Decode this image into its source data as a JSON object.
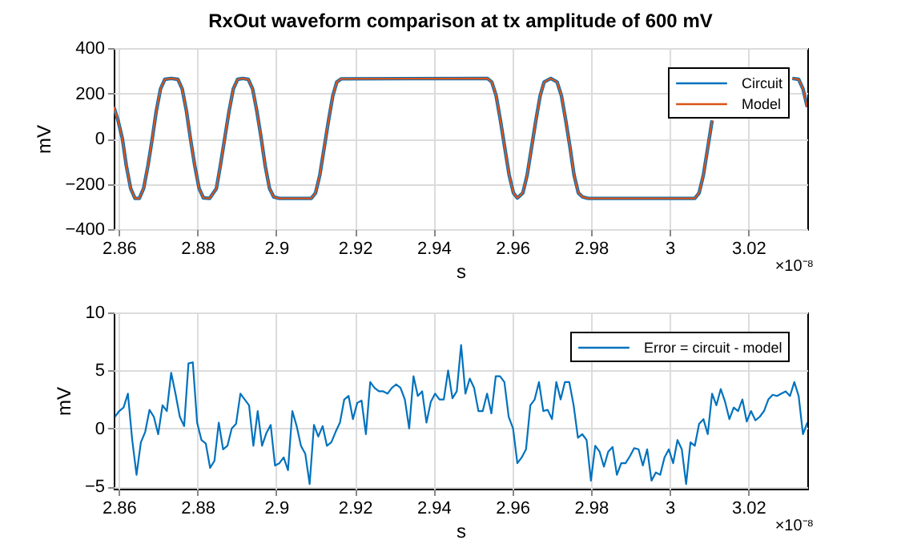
{
  "chart_data": [
    {
      "type": "line",
      "title": "RxOut waveform comparison at tx amplitude of 600 mV",
      "xlabel": "s",
      "ylabel": "mV",
      "annotations": [
        "×10⁻⁸"
      ],
      "x": [
        2.8587,
        2.8598,
        2.8609,
        2.8619,
        2.863,
        2.8641,
        2.8652,
        2.8663,
        2.8674,
        2.8685,
        2.8695,
        2.8706,
        2.8717,
        2.8733,
        2.875,
        2.8761,
        2.8772,
        2.8782,
        2.8793,
        2.8804,
        2.8815,
        2.8831,
        2.8848,
        2.8858,
        2.8869,
        2.888,
        2.8891,
        2.8902,
        2.8915,
        2.8929,
        2.894,
        2.8951,
        2.8962,
        2.8972,
        2.8983,
        2.8994,
        2.9008,
        2.9089,
        2.91,
        2.9111,
        2.9122,
        2.9133,
        2.9144,
        2.9154,
        2.9165,
        2.9537,
        2.9548,
        2.9559,
        2.957,
        2.9581,
        2.9592,
        2.9603,
        2.9613,
        2.9627,
        2.9638,
        2.9649,
        2.966,
        2.9671,
        2.9681,
        2.9698,
        2.9714,
        2.9725,
        2.9736,
        2.9747,
        2.9757,
        2.9768,
        2.9779,
        2.9793,
        3.0064,
        3.0075,
        3.0086,
        3.0097,
        3.0108,
        3.0119,
        3.013,
        3.014,
        3.0312,
        3.0328,
        3.0339,
        3.035
      ],
      "series": [
        {
          "name": "Circuit",
          "color": "#0072bd",
          "values": [
            141,
            80,
            0,
            -120,
            -220,
            -264,
            -264,
            -220,
            -120,
            0,
            120,
            220,
            262,
            266,
            262,
            220,
            120,
            0,
            -120,
            -220,
            -262,
            -264,
            -220,
            -120,
            0,
            120,
            220,
            262,
            266,
            262,
            220,
            120,
            0,
            -120,
            -220,
            -258,
            -264,
            -264,
            -240,
            -160,
            -40,
            80,
            190,
            250,
            264,
            266,
            250,
            190,
            80,
            -40,
            -160,
            -240,
            -262,
            -240,
            -160,
            -40,
            80,
            190,
            250,
            266,
            250,
            190,
            80,
            -40,
            -160,
            -240,
            -258,
            -264,
            -264,
            -240,
            -160,
            -40,
            80,
            null,
            null,
            null,
            266,
            262,
            220,
            140
          ]
        },
        {
          "name": "Model",
          "color": "#d95319",
          "values": [
            141,
            80,
            0,
            -120,
            -220,
            -264,
            -264,
            -220,
            -120,
            0,
            120,
            220,
            262,
            266,
            262,
            220,
            120,
            0,
            -120,
            -220,
            -262,
            -264,
            -220,
            -120,
            0,
            120,
            220,
            262,
            266,
            262,
            220,
            120,
            0,
            -120,
            -220,
            -258,
            -264,
            -264,
            -240,
            -160,
            -40,
            80,
            190,
            250,
            264,
            266,
            250,
            190,
            80,
            -40,
            -160,
            -240,
            -262,
            -240,
            -160,
            -40,
            80,
            190,
            250,
            266,
            250,
            190,
            80,
            -40,
            -160,
            -240,
            -258,
            -264,
            -264,
            -240,
            -160,
            -40,
            80,
            null,
            null,
            null,
            266,
            262,
            220,
            140
          ]
        }
      ],
      "xlim": [
        2.8587,
        3.035
      ],
      "xticks": [
        2.86,
        2.88,
        2.9,
        2.92,
        2.94,
        2.96,
        2.98,
        3,
        3.02
      ],
      "ylim": [
        -400,
        400
      ],
      "yticks": [
        -400,
        -200,
        0,
        200,
        400
      ],
      "grid": true,
      "legend": "top right"
    },
    {
      "type": "line",
      "xlabel": "s",
      "ylabel": "mV",
      "annotations": [
        "×10⁻⁸"
      ],
      "x": [
        2.859,
        2.8601,
        2.8612,
        2.8623,
        2.8634,
        2.8645,
        2.8656,
        2.8667,
        2.8678,
        2.8689,
        2.87,
        2.8711,
        2.8722,
        2.8733,
        2.8744,
        2.8755,
        2.8766,
        2.8777,
        2.8788,
        2.8799,
        2.881,
        2.8821,
        2.8832,
        2.8843,
        2.8854,
        2.8865,
        2.8876,
        2.8887,
        2.8898,
        2.8909,
        2.892,
        2.8931,
        2.8942,
        2.8953,
        2.8964,
        2.8975,
        2.8986,
        2.8997,
        2.9008,
        2.9019,
        2.903,
        2.9041,
        2.9052,
        2.9063,
        2.9074,
        2.9085,
        2.9096,
        2.9107,
        2.9118,
        2.9129,
        2.914,
        2.9151,
        2.9162,
        2.9173,
        2.9184,
        2.9195,
        2.9206,
        2.9217,
        2.9228,
        2.9239,
        2.925,
        2.9261,
        2.9272,
        2.9283,
        2.9294,
        2.9305,
        2.9316,
        2.9327,
        2.9338,
        2.9349,
        2.936,
        2.9371,
        2.9382,
        2.9393,
        2.9404,
        2.9415,
        2.9426,
        2.9437,
        2.9448,
        2.9459,
        2.947,
        2.9481,
        2.9492,
        2.9503,
        2.9514,
        2.9525,
        2.9536,
        2.9547,
        2.9558,
        2.9569,
        2.958,
        2.9591,
        2.9602,
        2.9613,
        2.9624,
        2.9635,
        2.9646,
        2.9657,
        2.9668,
        2.9679,
        2.969,
        2.9701,
        2.9712,
        2.9723,
        2.9734,
        2.9745,
        2.9756,
        2.9767,
        2.9778,
        2.9789,
        2.98,
        2.9811,
        2.9822,
        2.9833,
        2.9844,
        2.9855,
        2.9866,
        2.9877,
        2.9888,
        2.9899,
        2.991,
        2.9921,
        2.9932,
        2.9943,
        2.9954,
        2.9965,
        2.9976,
        2.9987,
        2.9998,
        3.0009,
        3.002,
        3.0031,
        3.0042,
        3.0053,
        3.0064,
        3.0075,
        3.0086,
        3.0097,
        3.0108,
        3.0119,
        3.013,
        3.0141,
        3.0152,
        3.0163,
        3.0174,
        3.0185,
        3.0196,
        3.0207,
        3.0218,
        3.0229,
        3.024,
        3.0251,
        3.0262,
        3.0273,
        3.0284,
        3.0295,
        3.0306,
        3.0317,
        3.0328,
        3.0339,
        3.035
      ],
      "series": [
        {
          "name": "Error = circuit - model",
          "color": "#0072bd",
          "values": [
            1.0,
            1.5,
            1.8,
            3.0,
            -1.0,
            -4.0,
            -1.2,
            -0.3,
            1.6,
            1.0,
            -0.5,
            2.0,
            1.5,
            4.8,
            3.0,
            1.0,
            0.2,
            5.6,
            5.7,
            0.5,
            -1.0,
            -1.3,
            -3.4,
            -2.8,
            0.5,
            -1.8,
            -1.5,
            0.0,
            0.4,
            3.0,
            2.5,
            2.0,
            -1.5,
            1.5,
            -1.5,
            -0.4,
            0.3,
            -3.2,
            -3.0,
            -2.5,
            -3.6,
            1.5,
            0.2,
            -1.5,
            -2.2,
            -4.8,
            0.3,
            -0.7,
            0.2,
            -1.5,
            -1.2,
            -0.3,
            0.5,
            2.5,
            2.8,
            0.8,
            2.2,
            2.4,
            -0.5,
            4.0,
            3.5,
            3.2,
            3.2,
            3.0,
            3.5,
            3.8,
            3.5,
            2.5,
            0.0,
            4.5,
            2.8,
            3.2,
            0.5,
            2.3,
            3.0,
            2.5,
            2.5,
            5.0,
            2.6,
            3.2,
            7.2,
            3.0,
            4.3,
            3.5,
            1.5,
            1.5,
            3.0,
            1.3,
            4.5,
            4.5,
            4.0,
            1.0,
            0.0,
            -3.0,
            -2.5,
            -1.8,
            2.0,
            2.5,
            4.0,
            1.5,
            1.6,
            0.8,
            4.0,
            2.5,
            4.0,
            4.0,
            2.0,
            -0.8,
            -0.5,
            -1.0,
            -4.5,
            -1.5,
            -2.0,
            -3.3,
            -2.0,
            -1.6,
            -4.0,
            -3.0,
            -3.0,
            -2.4,
            -1.7,
            -1.8,
            -3.2,
            -1.8,
            -4.5,
            -3.8,
            -4.0,
            -2.5,
            -1.8,
            -3.0,
            -1.0,
            -1.8,
            -4.8,
            -1.2,
            -1.5,
            0.4,
            0.8,
            -0.5,
            3.0,
            2.0,
            3.4,
            2.3,
            0.8,
            1.8,
            1.5,
            2.5,
            0.6,
            1.5,
            0.7,
            1.0,
            1.5,
            2.5,
            2.9,
            2.8,
            3.0,
            3.2,
            2.8,
            4.0,
            2.8,
            -0.5,
            0.5
          ]
        }
      ],
      "xlim": [
        2.8587,
        3.035
      ],
      "xticks": [
        2.86,
        2.88,
        2.9,
        2.92,
        2.94,
        2.96,
        2.98,
        3,
        3.02
      ],
      "ylim": [
        -5.2,
        10
      ],
      "yticks": [
        -5,
        0,
        5,
        10
      ],
      "grid": true,
      "legend": "top right"
    }
  ]
}
